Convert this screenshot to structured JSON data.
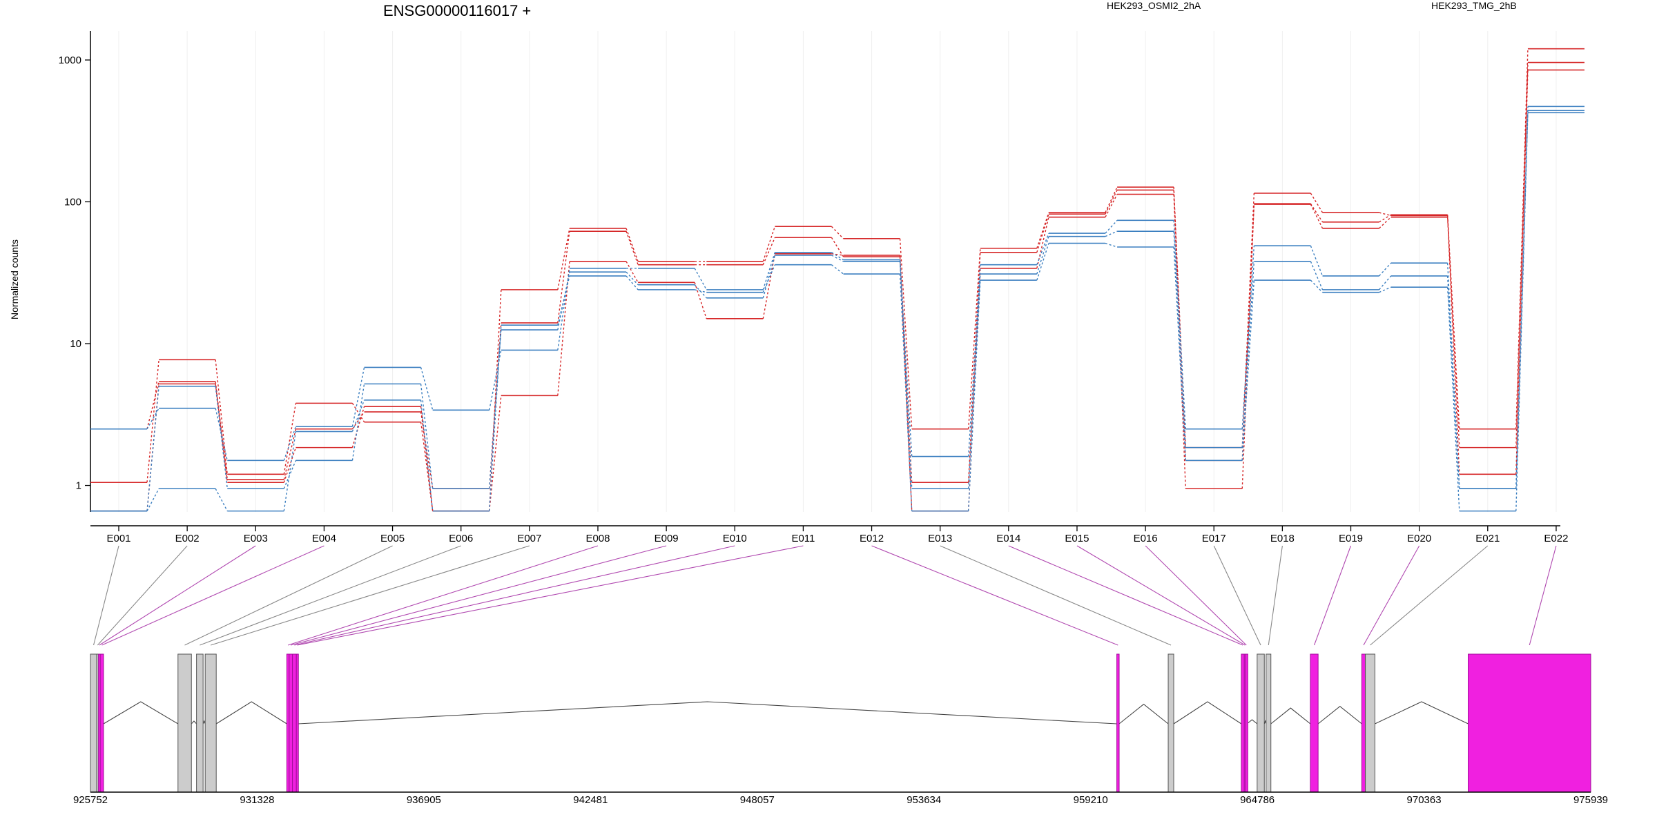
{
  "chart_data": {
    "type": "line",
    "title": "ENSG00000116017 +",
    "ylabel": "Normalized counts",
    "xlabel": "",
    "y_scale": "log",
    "ylim": [
      0.65,
      1600
    ],
    "y_ticks": [
      1,
      10,
      100,
      1000
    ],
    "y_tick_labels": [
      "1",
      "10",
      "100",
      "1000"
    ],
    "grid": "vertical, light",
    "legend_placement": "top-right",
    "exons": [
      "E001",
      "E002",
      "E003",
      "E004",
      "E005",
      "E006",
      "E007",
      "E008",
      "E009",
      "E010",
      "E011",
      "E012",
      "E013",
      "E014",
      "E015",
      "E016",
      "E017",
      "E018",
      "E019",
      "E020",
      "E021",
      "E022"
    ],
    "conditions": [
      {
        "name": "HEK293_OSMI2_2hA",
        "color": "#d62728"
      },
      {
        "name": "HEK293_TMG_2hB",
        "color": "#3b7fc0"
      }
    ],
    "series": [
      {
        "condition": 0,
        "values": [
          1.05,
          7.7,
          1.2,
          3.8,
          2.8,
          0.66,
          24,
          65,
          38,
          38,
          67,
          55,
          2.5,
          47,
          84,
          127,
          1.85,
          115,
          84,
          80,
          2.5,
          1200
        ]
      },
      {
        "condition": 0,
        "values": [
          2.5,
          5.4,
          1.1,
          2.5,
          3.3,
          0.95,
          14,
          62,
          36,
          36,
          56,
          41,
          1.05,
          44,
          82,
          121,
          1.5,
          97,
          72,
          81,
          1.85,
          960
        ]
      },
      {
        "condition": 0,
        "values": [
          0.66,
          5.2,
          1.05,
          1.85,
          3.6,
          0.66,
          4.3,
          38,
          27,
          15,
          43,
          42,
          0.66,
          34,
          78,
          113,
          0.95,
          96,
          65,
          78,
          1.2,
          850
        ]
      },
      {
        "condition": 1,
        "values": [
          2.5,
          3.5,
          1.5,
          2.6,
          6.8,
          3.4,
          9,
          34,
          34,
          24,
          44,
          39,
          1.6,
          36,
          60,
          74,
          2.5,
          49,
          30,
          37,
          0.95,
          470
        ]
      },
      {
        "condition": 1,
        "values": [
          0.66,
          5.0,
          0.95,
          1.5,
          5.2,
          0.95,
          12.5,
          32,
          26,
          21,
          42,
          38,
          0.95,
          31,
          57,
          62,
          1.85,
          38,
          24,
          30,
          0.95,
          440
        ]
      },
      {
        "condition": 1,
        "values": [
          0.66,
          0.95,
          0.66,
          2.4,
          4.0,
          0.66,
          13.5,
          30,
          24,
          23,
          36,
          31,
          0.66,
          28,
          51,
          48,
          1.5,
          28,
          23,
          25,
          0.66,
          425
        ]
      }
    ],
    "gene_model": {
      "coord_ticks": [
        "925752",
        "931328",
        "936905",
        "942481",
        "948057",
        "953634",
        "959210",
        "964786",
        "970363",
        "975939"
      ],
      "coord_range": [
        925752,
        975939
      ],
      "exon_features": [
        {
          "id": "E001",
          "start": 925752,
          "end": 925962,
          "counted": false
        },
        {
          "id": "E002",
          "start": 925962,
          "end": 926020,
          "counted": false
        },
        {
          "id": "E003",
          "start": 926020,
          "end": 926080,
          "counted": true
        },
        {
          "id": "E004",
          "start": 926080,
          "end": 926190,
          "counted": true
        },
        {
          "id": "E005",
          "start": 928680,
          "end": 929130,
          "counted": false
        },
        {
          "id": "E006",
          "start": 929300,
          "end": 929520,
          "counted": false
        },
        {
          "id": "E007",
          "start": 929590,
          "end": 929960,
          "counted": false
        },
        {
          "id": "E008",
          "start": 932320,
          "end": 932400,
          "counted": true
        },
        {
          "id": "E009",
          "start": 932400,
          "end": 932510,
          "counted": true
        },
        {
          "id": "E010",
          "start": 932510,
          "end": 932640,
          "counted": true
        },
        {
          "id": "E011",
          "start": 932640,
          "end": 932700,
          "counted": true
        },
        {
          "id": "E012",
          "start": 960085,
          "end": 960165,
          "counted": true
        },
        {
          "id": "E013",
          "start": 961805,
          "end": 961990,
          "counted": false
        },
        {
          "id": "E014",
          "start": 964250,
          "end": 964350,
          "counted": true
        },
        {
          "id": "E015",
          "start": 964350,
          "end": 964400,
          "counted": true
        },
        {
          "id": "E016",
          "start": 964400,
          "end": 964440,
          "counted": true
        },
        {
          "id": "E017",
          "start": 964780,
          "end": 965020,
          "counted": false
        },
        {
          "id": "E018",
          "start": 965080,
          "end": 965240,
          "counted": false
        },
        {
          "id": "E019",
          "start": 966560,
          "end": 966820,
          "counted": true
        },
        {
          "id": "E020",
          "start": 968280,
          "end": 968400,
          "counted": true
        },
        {
          "id": "E021",
          "start": 968400,
          "end": 968720,
          "counted": false
        },
        {
          "id": "E022",
          "start": 971840,
          "end": 975939,
          "counted": true
        }
      ],
      "introns": [
        [
          926190,
          928680
        ],
        [
          929130,
          929300
        ],
        [
          929520,
          929590
        ],
        [
          929960,
          932320
        ],
        [
          932700,
          960085
        ],
        [
          960165,
          961805
        ],
        [
          961990,
          964250
        ],
        [
          964440,
          964780
        ],
        [
          965020,
          965080
        ],
        [
          965240,
          966560
        ],
        [
          966820,
          968280
        ],
        [
          968720,
          971840
        ]
      ],
      "colors": {
        "counted": "#f020e0",
        "counted_edge": "#a0109a",
        "other": "#cccccc",
        "other_edge": "#555555",
        "link_counted": "#b048b0",
        "link_other": "#888888"
      }
    }
  }
}
